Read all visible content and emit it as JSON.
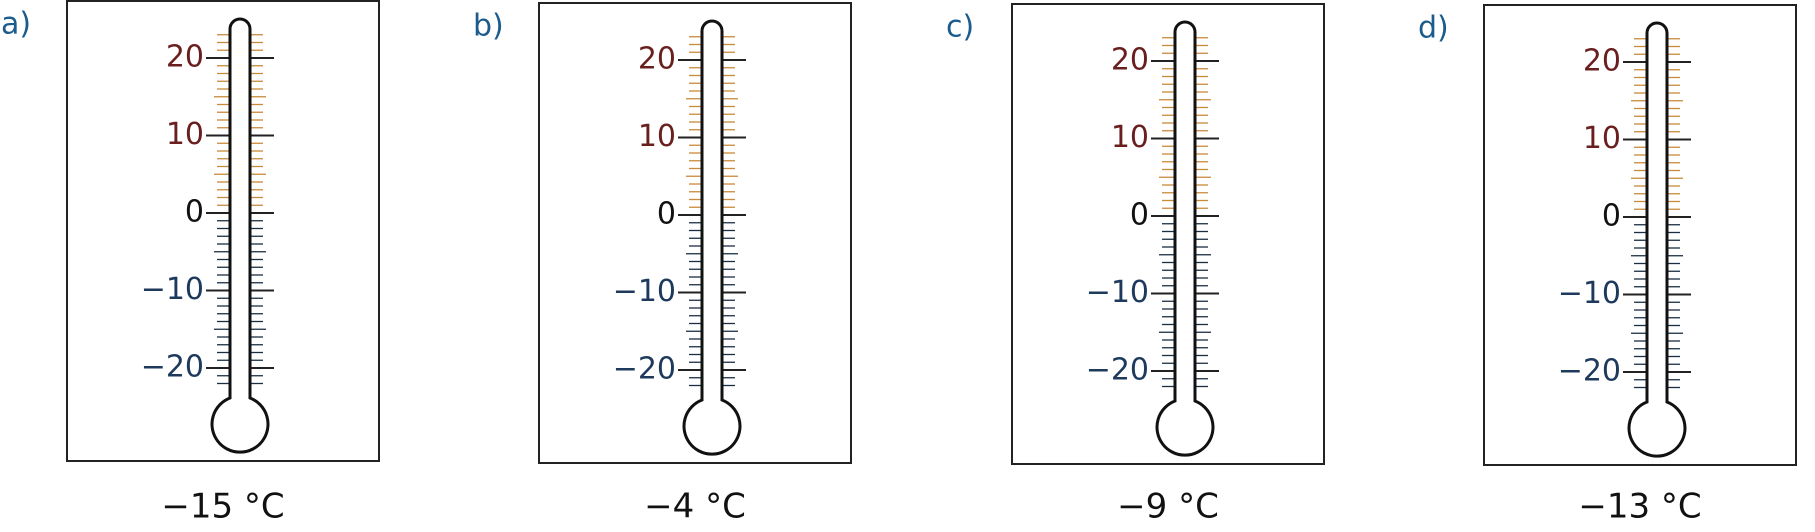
{
  "scale_labels": [
    "20",
    "10",
    "0",
    "−10",
    "−20"
  ],
  "panels": [
    {
      "label": "a)",
      "caption": "−15 °C"
    },
    {
      "label": "b)",
      "caption": "−4 °C"
    },
    {
      "label": "c)",
      "caption": "−9 °C"
    },
    {
      "label": "d)",
      "caption": "−13 °C"
    }
  ]
}
